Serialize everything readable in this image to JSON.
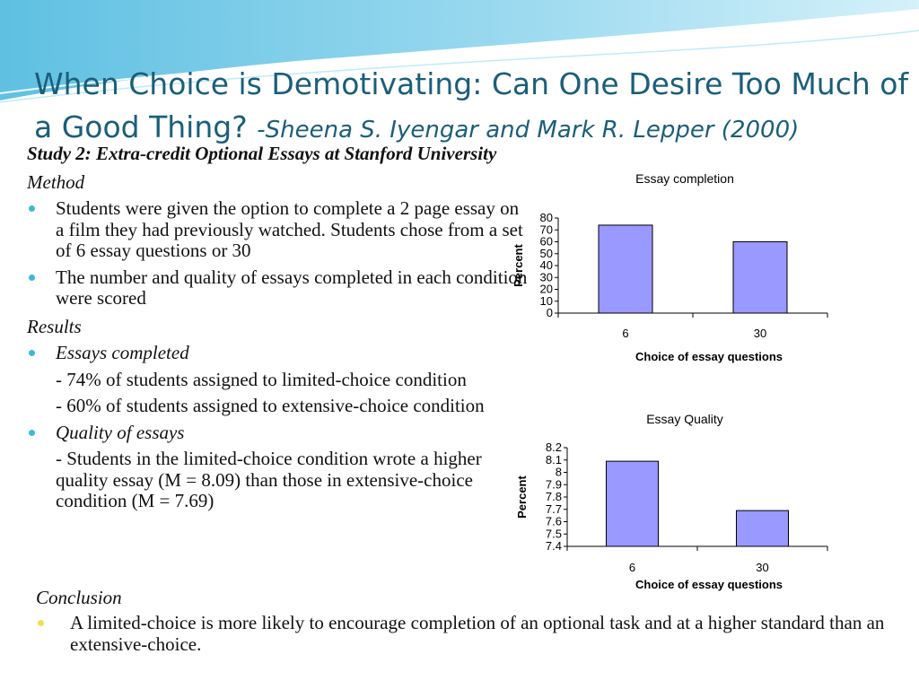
{
  "slide": {
    "title_main": "When Choice is Demotivating: Can One Desire Too Much of a Good Thing?",
    "title_authors": "-Sheena S. Iyengar and Mark R. Lepper (2000)"
  },
  "body": {
    "study": "Study 2: Extra-credit Optional Essays at Stanford University",
    "method_heading": "Method",
    "method_bullets": [
      "Students were given the option to complete a 2 page essay on a film they had previously watched. Students chose from a set of 6 essay questions or 30",
      "The number and quality of essays completed in each condition were scored"
    ],
    "results_heading": "Results",
    "essays_completed_heading": "Essays completed",
    "essays_completed_items": [
      "- 74% of students assigned to limited-choice condition",
      "- 60% of students assigned to extensive-choice condition"
    ],
    "quality_heading": "Quality of essays",
    "quality_items": [
      "- Students in the limited-choice condition wrote a higher quality essay (M = 8.09) than those in extensive-choice condition (M = 7.69)"
    ],
    "conclusion_heading": "Conclusion",
    "conclusion_text": "A limited-choice is more likely to encourage completion of an optional task and at a higher standard than an extensive-choice."
  },
  "colors": {
    "title": "#1b5e7a",
    "bullet": "#3fb8d8",
    "conclusion_bullet": "#f0e04a",
    "bar_fill": "#9999ff"
  },
  "chart_data": [
    {
      "type": "bar",
      "title": "Essay completion",
      "xlabel": "Choice of essay questions",
      "ylabel": "Percent",
      "categories": [
        "6",
        "30"
      ],
      "values": [
        74,
        60
      ],
      "ylim": [
        0,
        80
      ],
      "yticks": [
        "0",
        "10",
        "20",
        "30",
        "40",
        "50",
        "60",
        "70",
        "80"
      ],
      "grid": false
    },
    {
      "type": "bar",
      "title": "Essay Quality",
      "xlabel": "Choice of essay questions",
      "ylabel": "Percent",
      "categories": [
        "6",
        "30"
      ],
      "values": [
        8.09,
        7.69
      ],
      "ylim": [
        7.4,
        8.2
      ],
      "yticks": [
        "7.4",
        "7.5",
        "7.6",
        "7.7",
        "7.8",
        "7.9",
        "8",
        "8.1",
        "8.2"
      ],
      "grid": false
    }
  ]
}
